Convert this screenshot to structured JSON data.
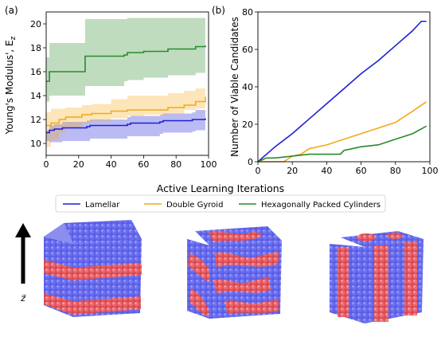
{
  "panels": {
    "a": "(a)",
    "b": "(b)"
  },
  "xlabel": "Active Learning Iterations",
  "legend": [
    {
      "label": "Lamellar",
      "color": "#1f1fd6"
    },
    {
      "label": "Double Gyroid",
      "color": "#f4a818"
    },
    {
      "label": "Hexagonally Packed Cylinders",
      "color": "#2a8a2a"
    }
  ],
  "zaxis_label": "z⃗",
  "renders": [
    {
      "name": "Lamellar",
      "pattern": "horizontal-layers"
    },
    {
      "name": "Double Gyroid",
      "pattern": "network"
    },
    {
      "name": "Hexagonally Packed Cylinders",
      "pattern": "vertical-cylinders"
    }
  ],
  "colors": {
    "blue_phase": "#5a5ee6",
    "red_phase": "#e85a60"
  },
  "chart_data": [
    {
      "type": "line",
      "panel": "(a)",
      "ylabel": "Young's Modulus', E_z",
      "xlim": [
        0,
        100
      ],
      "ylim": [
        9,
        21
      ],
      "xticks": [
        0,
        20,
        40,
        60,
        80,
        100
      ],
      "yticks": [
        10,
        12,
        14,
        16,
        18,
        20
      ],
      "series": [
        {
          "name": "Lamellar",
          "color": "#1f1fd6",
          "x": [
            0,
            2,
            5,
            10,
            25,
            27,
            50,
            52,
            70,
            72,
            90,
            92,
            98
          ],
          "y": [
            10.9,
            11.1,
            11.2,
            11.3,
            11.4,
            11.5,
            11.6,
            11.7,
            11.8,
            11.9,
            12.0,
            12.0,
            12.1
          ],
          "band_low": [
            10.2,
            10.1,
            10.1,
            10.2,
            10.2,
            10.4,
            10.6,
            10.6,
            10.8,
            10.9,
            11.0,
            11.1,
            11.2
          ],
          "band_high": [
            11.1,
            11.5,
            11.6,
            11.8,
            11.9,
            12.0,
            12.2,
            12.3,
            12.4,
            12.5,
            12.6,
            12.8,
            12.9
          ]
        },
        {
          "name": "Double Gyroid",
          "color": "#f4a818",
          "x": [
            0,
            3,
            8,
            12,
            22,
            28,
            40,
            50,
            60,
            75,
            85,
            92,
            98
          ],
          "y": [
            11.5,
            11.7,
            12.0,
            12.2,
            12.4,
            12.5,
            12.7,
            12.8,
            12.8,
            13.0,
            13.2,
            13.5,
            13.9
          ],
          "band_low": [
            9.7,
            10.3,
            10.9,
            11.3,
            11.7,
            11.9,
            12.1,
            12.3,
            12.4,
            12.5,
            12.8,
            12.9,
            13.0
          ],
          "band_high": [
            12.6,
            12.9,
            12.9,
            13.0,
            13.2,
            13.3,
            13.7,
            14.0,
            14.0,
            14.2,
            14.4,
            14.6,
            14.8
          ]
        },
        {
          "name": "Hexagonally Packed Cylinders",
          "color": "#2a8a2a",
          "x": [
            0,
            2,
            12,
            24,
            26,
            48,
            50,
            60,
            75,
            92,
            98
          ],
          "y": [
            15.2,
            16.0,
            16.0,
            17.3,
            17.3,
            17.4,
            17.6,
            17.7,
            17.9,
            18.1,
            18.2
          ],
          "band_low": [
            13.5,
            14.0,
            14.0,
            14.8,
            14.8,
            15.2,
            15.3,
            15.5,
            15.7,
            15.9,
            16.0
          ],
          "band_high": [
            17.2,
            18.4,
            18.4,
            20.4,
            20.4,
            20.4,
            20.5,
            20.5,
            20.5,
            20.5,
            20.5
          ]
        }
      ]
    },
    {
      "type": "line",
      "panel": "(b)",
      "ylabel": "Number of Viable Candidates",
      "xlim": [
        0,
        100
      ],
      "ylim": [
        0,
        80
      ],
      "xticks": [
        0,
        20,
        40,
        60,
        80,
        100
      ],
      "yticks": [
        0,
        20,
        40,
        60,
        80
      ],
      "series": [
        {
          "name": "Lamellar",
          "color": "#1f1fd6",
          "x": [
            0,
            10,
            20,
            30,
            40,
            50,
            60,
            70,
            80,
            90,
            95,
            98
          ],
          "y": [
            0,
            8,
            15,
            23,
            31,
            39,
            47,
            54,
            62,
            70,
            75,
            75
          ]
        },
        {
          "name": "Double Gyroid",
          "color": "#f4a818",
          "x": [
            0,
            15,
            20,
            25,
            30,
            40,
            50,
            60,
            70,
            80,
            90,
            98
          ],
          "y": [
            0,
            0,
            3,
            4,
            7,
            9,
            12,
            15,
            18,
            21,
            27,
            32
          ]
        },
        {
          "name": "Hexagonally Packed Cylinders",
          "color": "#2a8a2a",
          "x": [
            0,
            5,
            10,
            20,
            30,
            40,
            48,
            50,
            60,
            70,
            80,
            90,
            98
          ],
          "y": [
            0,
            2,
            2,
            3,
            4,
            4,
            4,
            6,
            8,
            9,
            12,
            15,
            19
          ]
        }
      ]
    }
  ]
}
